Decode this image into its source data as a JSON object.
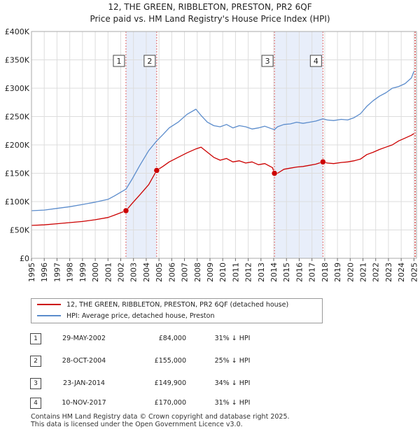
{
  "title": "12, THE GREEN, RIBBLETON, PRESTON, PR2 6QF",
  "subtitle": "Price paid vs. HM Land Registry's House Price Index (HPI)",
  "colors": {
    "red": "#cc0000",
    "blue": "#5b8ccc",
    "band": "#e8eefa",
    "grid": "#dddddd"
  },
  "chart_data": {
    "type": "line",
    "x_ticks": [
      1995,
      1996,
      1997,
      1998,
      1999,
      2000,
      2001,
      2002,
      2003,
      2004,
      2005,
      2006,
      2007,
      2008,
      2009,
      2010,
      2011,
      2012,
      2013,
      2014,
      2015,
      2016,
      2017,
      2018,
      2019,
      2020,
      2021,
      2022,
      2023,
      2024,
      2025
    ],
    "y_ticks": [
      {
        "value": 0,
        "label": "£0"
      },
      {
        "value": 50000,
        "label": "£50K"
      },
      {
        "value": 100000,
        "label": "£100K"
      },
      {
        "value": 150000,
        "label": "£150K"
      },
      {
        "value": 200000,
        "label": "£200K"
      },
      {
        "value": 250000,
        "label": "£250K"
      },
      {
        "value": 300000,
        "label": "£300K"
      },
      {
        "value": 350000,
        "label": "£350K"
      },
      {
        "value": 400000,
        "label": "£400K"
      }
    ],
    "xlim": [
      1995,
      2025.2
    ],
    "ylim": [
      0,
      400000
    ],
    "series": [
      {
        "name": "12, THE GREEN, RIBBLETON, PRESTON, PR2 6QF (detached house)",
        "color": "#cc0000",
        "x": [
          1995,
          1996,
          1997,
          1998,
          1999,
          2000,
          2001,
          2001.5,
          2002.41,
          2002.9,
          2003.5,
          2004.2,
          2004.82,
          2005.3,
          2005.8,
          2006.5,
          2007.2,
          2007.9,
          2008.3,
          2008.8,
          2009.3,
          2009.8,
          2010.3,
          2010.8,
          2011.3,
          2011.8,
          2012.3,
          2012.8,
          2013.3,
          2013.9,
          2014.06,
          2014.3,
          2014.8,
          2015.3,
          2015.8,
          2016.3,
          2016.8,
          2017.3,
          2017.86,
          2018.2,
          2018.7,
          2019.3,
          2019.8,
          2020.3,
          2020.8,
          2021.3,
          2021.8,
          2022.3,
          2022.8,
          2023.3,
          2023.8,
          2024.3,
          2024.8,
          2025.0
        ],
        "y": [
          58000,
          59000,
          61000,
          63000,
          65000,
          68000,
          72000,
          76000,
          84000,
          97000,
          112000,
          130000,
          155000,
          162000,
          170000,
          178000,
          186000,
          193000,
          196000,
          187000,
          178000,
          173000,
          176000,
          170000,
          172000,
          168000,
          170000,
          165000,
          167000,
          160000,
          149900,
          150000,
          157000,
          159000,
          161000,
          162000,
          164000,
          166000,
          170000,
          168000,
          167000,
          169000,
          170000,
          172000,
          175000,
          183000,
          187000,
          192000,
          196000,
          200000,
          207000,
          212000,
          217000,
          220000
        ]
      },
      {
        "name": "HPI: Average price, detached house, Preston",
        "color": "#5b8ccc",
        "x": [
          1995,
          1996,
          1997,
          1998,
          1999,
          2000,
          2001,
          2001.5,
          2002.41,
          2002.9,
          2003.5,
          2004.2,
          2004.82,
          2005.3,
          2005.8,
          2006.5,
          2007.2,
          2007.9,
          2008.3,
          2008.8,
          2009.3,
          2009.8,
          2010.3,
          2010.8,
          2011.3,
          2011.8,
          2012.3,
          2012.8,
          2013.3,
          2013.9,
          2014.06,
          2014.3,
          2014.8,
          2015.3,
          2015.8,
          2016.3,
          2016.8,
          2017.3,
          2017.86,
          2018.2,
          2018.7,
          2019.3,
          2019.8,
          2020.3,
          2020.8,
          2021.3,
          2021.8,
          2022.3,
          2022.8,
          2023.3,
          2023.8,
          2024.3,
          2024.8,
          2025.0
        ],
        "y": [
          84000,
          85000,
          88000,
          91000,
          95000,
          99000,
          104000,
          110000,
          122000,
          140000,
          164000,
          190000,
          207000,
          218000,
          230000,
          240000,
          254000,
          263000,
          252000,
          240000,
          234000,
          232000,
          236000,
          230000,
          234000,
          232000,
          228000,
          230000,
          233000,
          228000,
          227000,
          232000,
          236000,
          237000,
          240000,
          238000,
          240000,
          242000,
          246000,
          244000,
          243000,
          245000,
          244000,
          248000,
          255000,
          268000,
          278000,
          286000,
          292000,
          300000,
          303000,
          308000,
          318000,
          330000
        ]
      }
    ],
    "sales": [
      {
        "label": "1",
        "x": 2002.41,
        "price": 84000
      },
      {
        "label": "2",
        "x": 2004.82,
        "price": 155000
      },
      {
        "label": "3",
        "x": 2014.06,
        "price": 149900
      },
      {
        "label": "4",
        "x": 2017.86,
        "price": 170000
      }
    ],
    "shaded_ranges": [
      [
        2002.41,
        2004.82
      ],
      [
        2014.06,
        2017.86
      ]
    ]
  },
  "transactions": [
    {
      "num": "1",
      "date": "29-MAY-2002",
      "price": "£84,000",
      "pct": "31% ↓ HPI"
    },
    {
      "num": "2",
      "date": "28-OCT-2004",
      "price": "£155,000",
      "pct": "25% ↓ HPI"
    },
    {
      "num": "3",
      "date": "23-JAN-2014",
      "price": "£149,900",
      "pct": "34% ↓ HPI"
    },
    {
      "num": "4",
      "date": "10-NOV-2017",
      "price": "£170,000",
      "pct": "31% ↓ HPI"
    }
  ],
  "footer": {
    "line1": "Contains HM Land Registry data © Crown copyright and database right 2025.",
    "line2": "This data is licensed under the Open Government Licence v3.0."
  }
}
